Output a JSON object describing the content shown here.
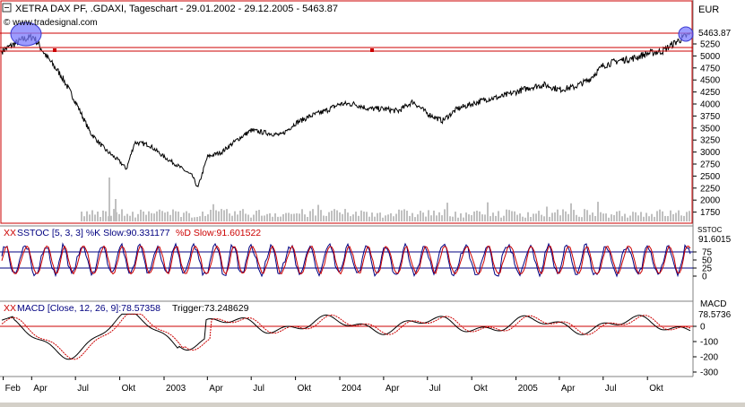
{
  "header": {
    "title": "XETRA DAX PF, .GDAXI, Tageschart - 29.01.2002 - 29.12.2005 - 5463.87",
    "source": "© www.tradesignal.com",
    "currency": "EUR"
  },
  "price_panel": {
    "last_value": "5463.87",
    "ticks": [
      "5250",
      "5000",
      "4750",
      "4500",
      "4250",
      "4000",
      "3750",
      "3500",
      "3250",
      "3000",
      "2750",
      "2500",
      "2250",
      "2000",
      "1750"
    ]
  },
  "stoch_panel": {
    "label_prefix": "XX",
    "label": "SSTOC [5, 3, 3] %K Slow:90.331177",
    "label_d": "%D Slow:91.601522",
    "axis_title": "SSTOC",
    "last_value": "91.6015",
    "ticks": [
      "75",
      "50",
      "25",
      "0"
    ]
  },
  "macd_panel": {
    "label_prefix": "XX",
    "label": "MACD [Close, 12, 26, 9]:78.57358",
    "label_trigger": "Trigger:73.248629",
    "axis_title": "MACD",
    "last_value": "78.5736",
    "ticks": [
      "0",
      "-100",
      "-200",
      "-300"
    ]
  },
  "time_axis": {
    "labels": [
      "Feb",
      "Apr",
      "Jul",
      "Okt",
      "2003",
      "Apr",
      "Jul",
      "Okt",
      "2004",
      "Apr",
      "Jul",
      "Okt",
      "2005",
      "Apr",
      "Jul",
      "Okt"
    ]
  },
  "colors": {
    "price_line": "#000000",
    "panel_border": "#cc0000",
    "stoch_k": "#cc0000",
    "stoch_d": "#000080",
    "highlight": "#7b7bff",
    "volume": "#c0c0c0"
  },
  "chart_data": [
    {
      "type": "line",
      "title": "XETRA DAX PF, .GDAXI, Tageschart - 29.01.2002 - 29.12.2005 - 5463.87",
      "ylabel": "EUR",
      "ylim": [
        1750,
        5500
      ],
      "x": [
        "2002-01-29",
        "2002-02-15",
        "2002-03-15",
        "2002-04-05",
        "2002-05-01",
        "2002-06-01",
        "2002-07-01",
        "2002-08-01",
        "2002-09-01",
        "2002-10-01",
        "2002-10-15",
        "2002-11-01",
        "2002-12-01",
        "2003-01-01",
        "2003-02-01",
        "2003-03-01",
        "2003-03-12",
        "2003-04-01",
        "2003-05-01",
        "2003-06-01",
        "2003-07-01",
        "2003-08-01",
        "2003-09-01",
        "2003-10-01",
        "2003-11-01",
        "2003-12-01",
        "2004-01-01",
        "2004-02-01",
        "2004-03-01",
        "2004-04-01",
        "2004-05-01",
        "2004-06-01",
        "2004-07-01",
        "2004-08-01",
        "2004-09-01",
        "2004-10-01",
        "2004-11-01",
        "2004-12-01",
        "2005-01-01",
        "2005-02-01",
        "2005-03-01",
        "2005-04-01",
        "2005-05-01",
        "2005-06-01",
        "2005-07-01",
        "2005-08-01",
        "2005-09-01",
        "2005-10-01",
        "2005-11-01",
        "2005-12-01",
        "2005-12-29"
      ],
      "series": [
        {
          "values": [
            5100,
            5200,
            5350,
            5400,
            5000,
            4600,
            4050,
            3400,
            3050,
            2800,
            2650,
            3200,
            3150,
            2900,
            2700,
            2500,
            2250,
            2900,
            3000,
            3250,
            3450,
            3400,
            3350,
            3600,
            3750,
            3850,
            4000,
            4000,
            3900,
            3900,
            3850,
            4050,
            3800,
            3650,
            3900,
            4000,
            4100,
            4150,
            4250,
            4350,
            4400,
            4300,
            4350,
            4500,
            4800,
            4900,
            4950,
            5050,
            5100,
            5300,
            5463.87
          ]
        }
      ]
    },
    {
      "type": "line",
      "title": "SSTOC [5, 3, 3]",
      "ylim": [
        0,
        100
      ],
      "series": [
        {
          "name": "%K Slow",
          "last": 90.331177
        },
        {
          "name": "%D Slow",
          "last": 91.601522
        }
      ]
    },
    {
      "type": "line",
      "title": "MACD [Close, 12, 26, 9]",
      "ylim": [
        -300,
        150
      ],
      "series": [
        {
          "name": "MACD",
          "last": 78.57358
        },
        {
          "name": "Trigger",
          "last": 73.248629
        }
      ]
    }
  ]
}
